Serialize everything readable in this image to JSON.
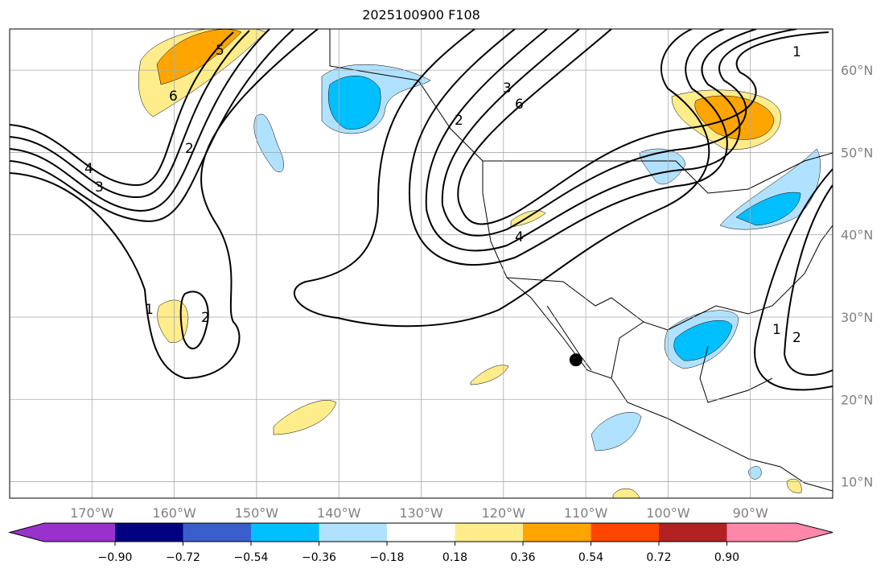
{
  "title": "2025100900 F108",
  "map": {
    "lon_range": [
      -180,
      -80
    ],
    "lat_range": [
      8,
      65
    ],
    "lon_ticks": [
      "170°W",
      "160°W",
      "150°W",
      "140°W",
      "130°W",
      "120°W",
      "110°W",
      "100°W",
      "90°W"
    ],
    "lon_tick_values": [
      -170,
      -160,
      -150,
      -140,
      -130,
      -120,
      -110,
      -100,
      -90
    ],
    "lat_ticks": [
      "60°N",
      "50°N",
      "40°N",
      "30°N",
      "20°N",
      "10°N"
    ],
    "lat_tick_values": [
      60,
      50,
      40,
      30,
      20,
      10
    ],
    "contour_labels": [
      "1",
      "2",
      "3",
      "4",
      "5",
      "6"
    ],
    "marker": {
      "lon": -111.2,
      "lat": 24.8
    }
  },
  "colorbar": {
    "labels": [
      "−0.90",
      "−0.72",
      "−0.54",
      "−0.36",
      "−0.18",
      "0.18",
      "0.36",
      "0.54",
      "0.72",
      "0.90"
    ],
    "colors": [
      "#9932CC",
      "#000080",
      "#3A5FCD",
      "#00BFFF",
      "#B0E2FF",
      "#FFFFFF",
      "#FFEC8B",
      "#FFA500",
      "#FF4500",
      "#B22222",
      "#FF88AA"
    ]
  }
}
